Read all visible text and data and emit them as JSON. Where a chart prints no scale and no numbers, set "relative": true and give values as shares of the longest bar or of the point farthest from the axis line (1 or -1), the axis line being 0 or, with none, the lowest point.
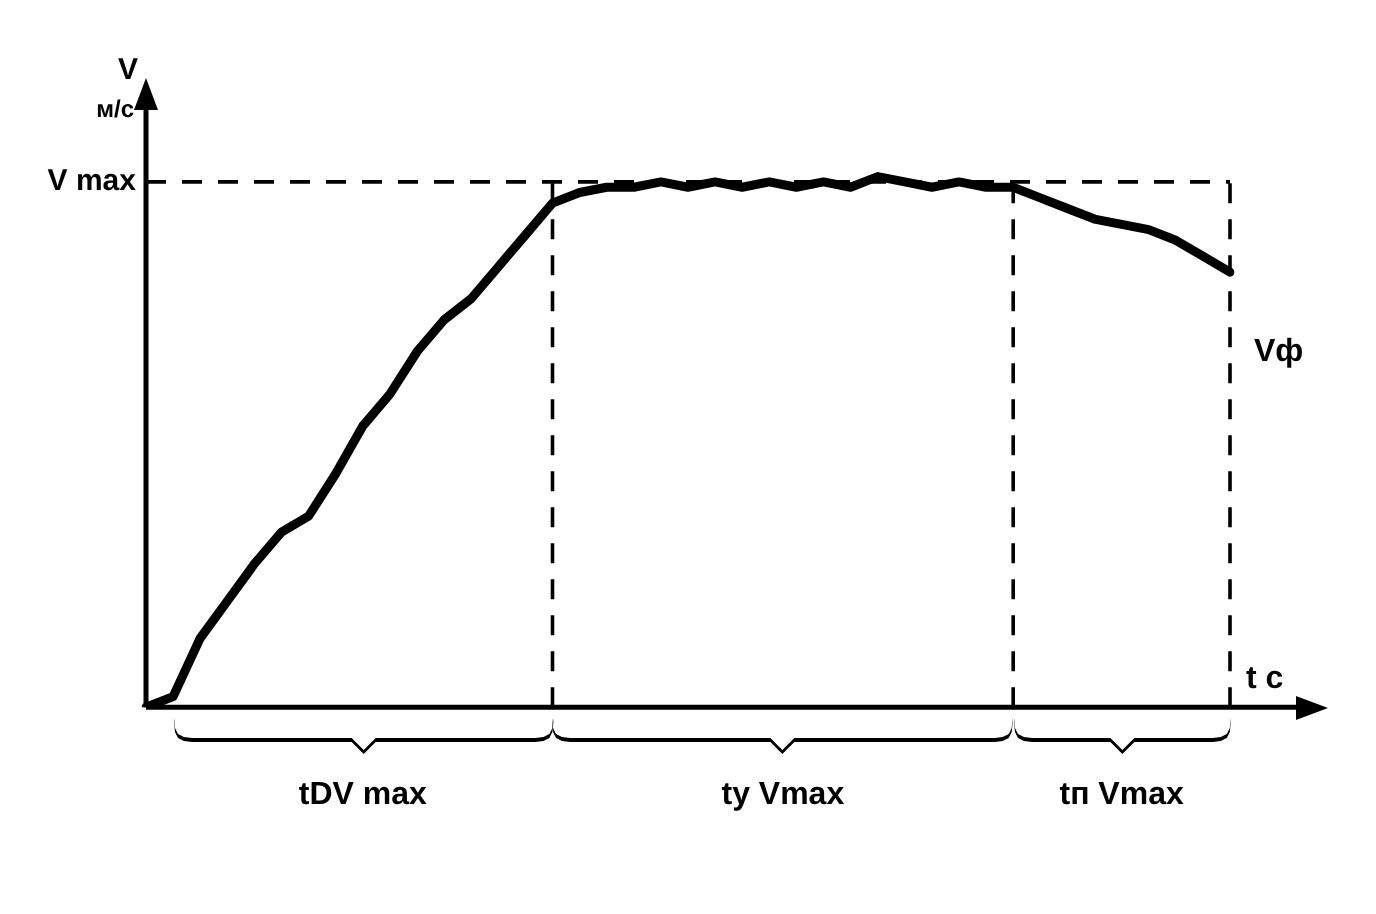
{
  "chart_data": {
    "type": "line",
    "relative": true,
    "xlabel": "t c",
    "ylabel": "V м/с",
    "grid": false,
    "legend": false,
    "marker": "none",
    "line_style": "solid",
    "categories": [
      null,
      null,
      null,
      null,
      null,
      null,
      null,
      null,
      null,
      null,
      null,
      null,
      null,
      null,
      null,
      null,
      null,
      null,
      null,
      null,
      null,
      null,
      null,
      null,
      null,
      null,
      null,
      null,
      null,
      null,
      null,
      null,
      null,
      null,
      null,
      null,
      null,
      null,
      null,
      null,
      null
    ],
    "series": [
      {
        "color": "#000000",
        "values": [
          0,
          0.02,
          0.13,
          0.2,
          0.27,
          0.33,
          0.36,
          0.44,
          0.53,
          0.59,
          0.67,
          0.73,
          0.77,
          0.83,
          0.89,
          0.95,
          0.97,
          0.98,
          0.98,
          0.99,
          0.98,
          0.99,
          0.98,
          0.99,
          0.98,
          0.99,
          0.98,
          1,
          0.99,
          0.98,
          0.99,
          0.98,
          0.98,
          0.96,
          0.94,
          0.92,
          0.91,
          0.9,
          0.88,
          0.85,
          0.82
        ]
      }
    ],
    "ref_lines": [
      {
        "axis": "y",
        "value": 0.99,
        "label": "V max",
        "line_style": "dashed",
        "color": "#000000"
      }
    ],
    "annotations": [
      "tDV max",
      "tу Vmax",
      "tп Vmax",
      "Vф"
    ]
  }
}
